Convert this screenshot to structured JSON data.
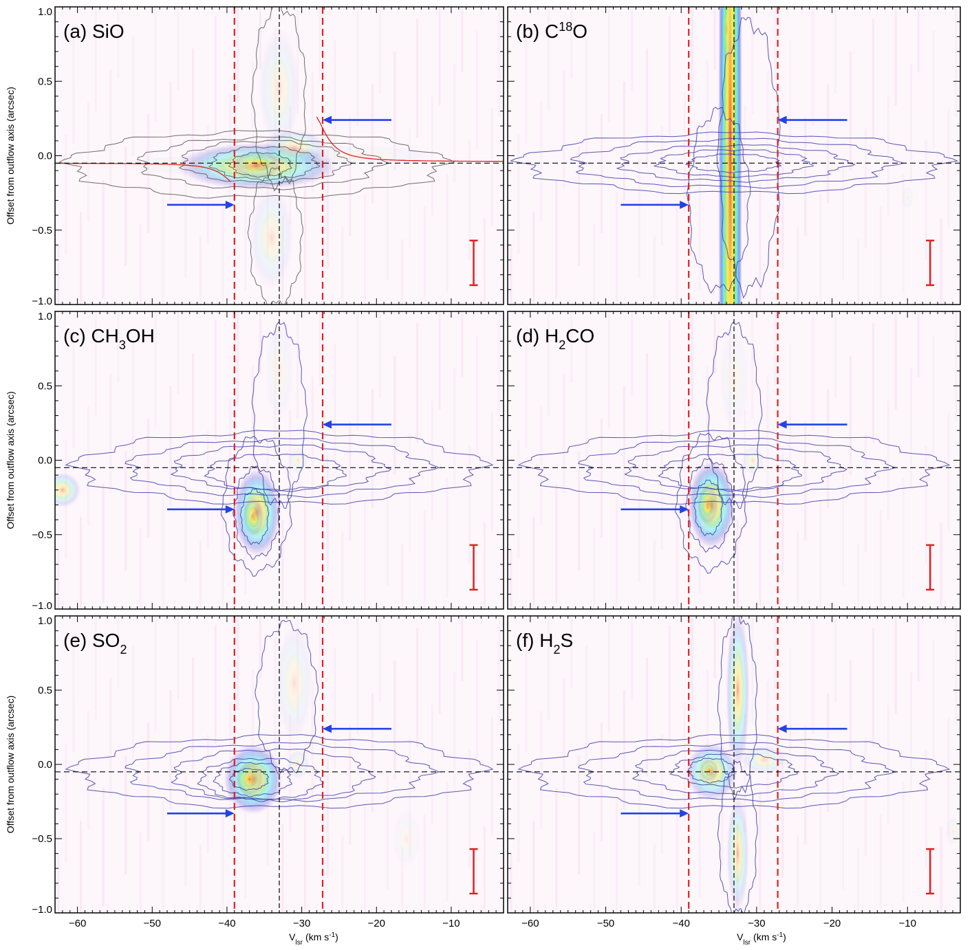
{
  "chart_data": {
    "type": "position-velocity diagram",
    "layout": "3 rows x 2 columns, shared axes",
    "xlabel": "V",
    "xlabel_sub": "lsr",
    "xlabel_units": "(km s",
    "xlabel_units_sup": "-1",
    "xlabel_units_close": ")",
    "ylabel": "Offset from outflow axis (arcsec)",
    "xlim": [
      -63,
      -3
    ],
    "ylim": [
      -1.0,
      1.0
    ],
    "xticks": [
      -60,
      -50,
      -40,
      -30,
      -20,
      -10
    ],
    "xtick_labels": [
      "−60",
      "−50",
      "−40",
      "−30",
      "−20",
      "−10"
    ],
    "yticks": [
      1.0,
      0.5,
      0.0,
      -0.5,
      -1.0
    ],
    "ytick_labels": [
      "1.0",
      "0.5",
      "0.0",
      "−0.5",
      "−1.0"
    ],
    "reference_lines": {
      "red_dashed_vertical_x": [
        -39,
        -27.2
      ],
      "black_dashed_vertical_x": -33,
      "black_dashed_horizontal_y": -0.05
    },
    "arrows": {
      "upper": {
        "x_from": -18,
        "x_to": -27.2,
        "y": 0.24
      },
      "lower": {
        "x_from": -48,
        "x_to": -39,
        "y": -0.33
      }
    },
    "beam_bar": {
      "x": -7,
      "y_from": -0.57,
      "y_to": -0.87
    },
    "colormap": [
      "#f9e3f5",
      "#c9b6ec",
      "#7b86e0",
      "#52b8ef",
      "#5ff0ee",
      "#72e676",
      "#d7ec4b",
      "#ffe53a",
      "#ff9a22",
      "#e8161a"
    ],
    "colors": {
      "reference_red": "#e02020",
      "arrow_blue": "#2342e8",
      "contour_blue": "#3a3aa8",
      "contour_gray": "#555555",
      "fit_curve": "#e02020"
    },
    "panels": [
      {
        "id": "a",
        "prefix": "(a) ",
        "species": "SiO",
        "sup": "",
        "sub": "",
        "suffix": "",
        "emission": [
          {
            "x": -36,
            "y": -0.07,
            "sx": 11,
            "sy": 0.16,
            "a": 0.55
          },
          {
            "x": -36,
            "y": -0.06,
            "sx": 3.5,
            "sy": 0.1,
            "a": 0.45
          },
          {
            "x": -35.5,
            "y": -0.05,
            "sx": 1.2,
            "sy": 0.06,
            "a": 0.35
          },
          {
            "x": -31,
            "y": 0.05,
            "sx": 4.5,
            "sy": 0.13,
            "a": 0.32
          },
          {
            "x": -45,
            "y": -0.06,
            "sx": 10,
            "sy": 0.06,
            "a": 0.15
          },
          {
            "x": -22,
            "y": 0.0,
            "sx": 10,
            "sy": 0.07,
            "a": 0.14
          },
          {
            "x": -33,
            "y": 0.45,
            "sx": 2.8,
            "sy": 0.42,
            "a": 0.2
          },
          {
            "x": -34,
            "y": -0.55,
            "sx": 3,
            "sy": 0.35,
            "a": 0.22
          }
        ],
        "contours": [
          {
            "x": -36,
            "y": -0.06,
            "rx": 25,
            "ry": 0.22
          },
          {
            "x": -35.5,
            "y": -0.05,
            "rx": 16,
            "ry": 0.17
          },
          {
            "x": -35,
            "y": -0.04,
            "rx": 11,
            "ry": 0.14
          },
          {
            "x": -35,
            "y": -0.05,
            "rx": 7,
            "ry": 0.11
          },
          {
            "x": -35.5,
            "y": -0.06,
            "rx": 4,
            "ry": 0.08
          },
          {
            "x": -33,
            "y": 0.4,
            "rx": 3.5,
            "ry": 0.6
          },
          {
            "x": -33.5,
            "y": -0.55,
            "rx": 3.5,
            "ry": 0.45
          }
        ],
        "contour_color": "gray",
        "fit_curve": true
      },
      {
        "id": "b",
        "prefix": "(b) ",
        "species": "C",
        "sup": "18",
        "sub": "",
        "suffix": "O",
        "emission": [
          {
            "x": -33.5,
            "y": 0.0,
            "sx": 1.6,
            "sy": 5,
            "a": 0.85
          },
          {
            "x": -34,
            "y": 0.85,
            "sx": 0.8,
            "sy": 0.25,
            "a": 0.3
          },
          {
            "x": -33.6,
            "y": -0.2,
            "sx": 0.6,
            "sy": 0.5,
            "a": 0.25
          },
          {
            "x": -10,
            "y": -0.28,
            "sx": 0.8,
            "sy": 0.08,
            "a": 0.15
          }
        ],
        "contours": [
          {
            "x": -33,
            "y": -0.05,
            "rx": 28,
            "ry": 0.2
          },
          {
            "x": -33,
            "y": -0.05,
            "rx": 21,
            "ry": 0.16
          },
          {
            "x": -33,
            "y": -0.05,
            "rx": 15,
            "ry": 0.12
          },
          {
            "x": -33,
            "y": -0.05,
            "rx": 10,
            "ry": 0.09
          },
          {
            "x": -33,
            "y": -0.05,
            "rx": 6,
            "ry": 0.06
          },
          {
            "x": -31,
            "y": 0.0,
            "rx": 4,
            "ry": 0.9
          },
          {
            "x": -35,
            "y": -0.3,
            "rx": 4,
            "ry": 0.6
          }
        ],
        "contour_color": "blue",
        "fit_curve": false
      },
      {
        "id": "c",
        "prefix": "(c) ",
        "species": "CH",
        "sup": "",
        "sub": "3",
        "suffix": "OH",
        "emission": [
          {
            "x": -36,
            "y": -0.35,
            "sx": 3.2,
            "sy": 0.3,
            "a": 0.6
          },
          {
            "x": -36.5,
            "y": -0.38,
            "sx": 1.5,
            "sy": 0.14,
            "a": 0.45
          },
          {
            "x": -36.3,
            "y": -0.4,
            "sx": 0.7,
            "sy": 0.06,
            "a": 0.35
          },
          {
            "x": -30.5,
            "y": 0.0,
            "sx": 1.4,
            "sy": 0.09,
            "a": 0.2
          },
          {
            "x": -62,
            "y": -0.2,
            "sx": 2.5,
            "sy": 0.12,
            "a": 0.4
          },
          {
            "x": -33,
            "y": 0.6,
            "sx": 2,
            "sy": 0.35,
            "a": 0.14
          }
        ],
        "contours": [
          {
            "x": -33,
            "y": -0.05,
            "rx": 27,
            "ry": 0.24
          },
          {
            "x": -33,
            "y": -0.05,
            "rx": 20,
            "ry": 0.19
          },
          {
            "x": -33,
            "y": -0.05,
            "rx": 14,
            "ry": 0.15
          },
          {
            "x": -33.5,
            "y": -0.08,
            "rx": 9,
            "ry": 0.12
          },
          {
            "x": -36,
            "y": -0.3,
            "rx": 4.5,
            "ry": 0.45
          },
          {
            "x": -36,
            "y": -0.35,
            "rx": 3,
            "ry": 0.3
          },
          {
            "x": -36.3,
            "y": -0.38,
            "rx": 1.8,
            "ry": 0.18
          },
          {
            "x": -33,
            "y": 0.3,
            "rx": 3.5,
            "ry": 0.6
          }
        ],
        "contour_color": "blue",
        "fit_curve": false
      },
      {
        "id": "d",
        "prefix": "(d) ",
        "species": "H",
        "sup": "",
        "sub": "2",
        "suffix": "CO",
        "emission": [
          {
            "x": -36,
            "y": -0.3,
            "sx": 3.2,
            "sy": 0.3,
            "a": 0.62
          },
          {
            "x": -36.5,
            "y": -0.3,
            "sx": 1.5,
            "sy": 0.14,
            "a": 0.45
          },
          {
            "x": -36.5,
            "y": -0.32,
            "sx": 0.8,
            "sy": 0.07,
            "a": 0.35
          },
          {
            "x": -30.5,
            "y": 0.0,
            "sx": 1.5,
            "sy": 0.1,
            "a": 0.22
          },
          {
            "x": -33,
            "y": 0.55,
            "sx": 2,
            "sy": 0.35,
            "a": 0.14
          }
        ],
        "contours": [
          {
            "x": -33,
            "y": -0.05,
            "rx": 27,
            "ry": 0.24
          },
          {
            "x": -33,
            "y": -0.05,
            "rx": 20,
            "ry": 0.19
          },
          {
            "x": -33,
            "y": -0.05,
            "rx": 14,
            "ry": 0.15
          },
          {
            "x": -33.5,
            "y": -0.08,
            "rx": 9,
            "ry": 0.12
          },
          {
            "x": -36,
            "y": -0.28,
            "rx": 4.5,
            "ry": 0.45
          },
          {
            "x": -36.2,
            "y": -0.3,
            "rx": 3,
            "ry": 0.3
          },
          {
            "x": -36.4,
            "y": -0.32,
            "rx": 1.8,
            "ry": 0.18
          },
          {
            "x": -33,
            "y": 0.3,
            "rx": 3.5,
            "ry": 0.6
          }
        ],
        "contour_color": "blue",
        "fit_curve": false
      },
      {
        "id": "e",
        "prefix": "(e) ",
        "species": "SO",
        "sup": "",
        "sub": "2",
        "suffix": "",
        "emission": [
          {
            "x": -36.5,
            "y": -0.1,
            "sx": 4,
            "sy": 0.24,
            "a": 0.62
          },
          {
            "x": -37,
            "y": -0.1,
            "sx": 2,
            "sy": 0.12,
            "a": 0.45
          },
          {
            "x": -37,
            "y": -0.1,
            "sx": 0.9,
            "sy": 0.06,
            "a": 0.35
          },
          {
            "x": -30.5,
            "y": 0.0,
            "sx": 1.6,
            "sy": 0.1,
            "a": 0.24
          },
          {
            "x": -31,
            "y": 0.55,
            "sx": 2.5,
            "sy": 0.4,
            "a": 0.2
          },
          {
            "x": -16,
            "y": -0.5,
            "sx": 2,
            "sy": 0.2,
            "a": 0.12
          }
        ],
        "contours": [
          {
            "x": -33,
            "y": -0.05,
            "rx": 27,
            "ry": 0.24
          },
          {
            "x": -33,
            "y": -0.05,
            "rx": 20,
            "ry": 0.19
          },
          {
            "x": -34,
            "y": -0.07,
            "rx": 13,
            "ry": 0.17
          },
          {
            "x": -35.5,
            "y": -0.1,
            "rx": 8,
            "ry": 0.14
          },
          {
            "x": -36.5,
            "y": -0.1,
            "rx": 5,
            "ry": 0.11
          },
          {
            "x": -37,
            "y": -0.1,
            "rx": 2.5,
            "ry": 0.07
          },
          {
            "x": -32,
            "y": 0.45,
            "rx": 4,
            "ry": 0.5
          }
        ],
        "contour_color": "blue",
        "fit_curve": false
      },
      {
        "id": "f",
        "prefix": "(f) ",
        "species": "H",
        "sup": "",
        "sub": "2",
        "suffix": "S",
        "emission": [
          {
            "x": -36,
            "y": -0.05,
            "sx": 3.5,
            "sy": 0.2,
            "a": 0.5
          },
          {
            "x": -36.3,
            "y": -0.04,
            "sx": 1.3,
            "sy": 0.08,
            "a": 0.45
          },
          {
            "x": -36.3,
            "y": -0.04,
            "sx": 0.6,
            "sy": 0.04,
            "a": 0.35
          },
          {
            "x": -29,
            "y": 0.03,
            "sx": 3,
            "sy": 0.1,
            "a": 0.28
          },
          {
            "x": -32.5,
            "y": 0.5,
            "sx": 1.6,
            "sy": 0.55,
            "a": 0.45
          },
          {
            "x": -32.5,
            "y": -0.6,
            "sx": 1.5,
            "sy": 0.4,
            "a": 0.38
          },
          {
            "x": -4,
            "y": -0.45,
            "sx": 1,
            "sy": 0.1,
            "a": 0.15
          }
        ],
        "contours": [
          {
            "x": -33,
            "y": -0.05,
            "rx": 27,
            "ry": 0.24
          },
          {
            "x": -33,
            "y": -0.05,
            "rx": 20,
            "ry": 0.19
          },
          {
            "x": -33,
            "y": -0.05,
            "rx": 13,
            "ry": 0.15
          },
          {
            "x": -33,
            "y": -0.04,
            "rx": 8,
            "ry": 0.11
          },
          {
            "x": -36,
            "y": -0.04,
            "rx": 3,
            "ry": 0.08
          },
          {
            "x": -32.5,
            "y": 0.4,
            "rx": 2.5,
            "ry": 0.6
          },
          {
            "x": -32.5,
            "y": -0.5,
            "rx": 2.5,
            "ry": 0.5
          }
        ],
        "contour_color": "blue",
        "fit_curve": false
      }
    ]
  }
}
